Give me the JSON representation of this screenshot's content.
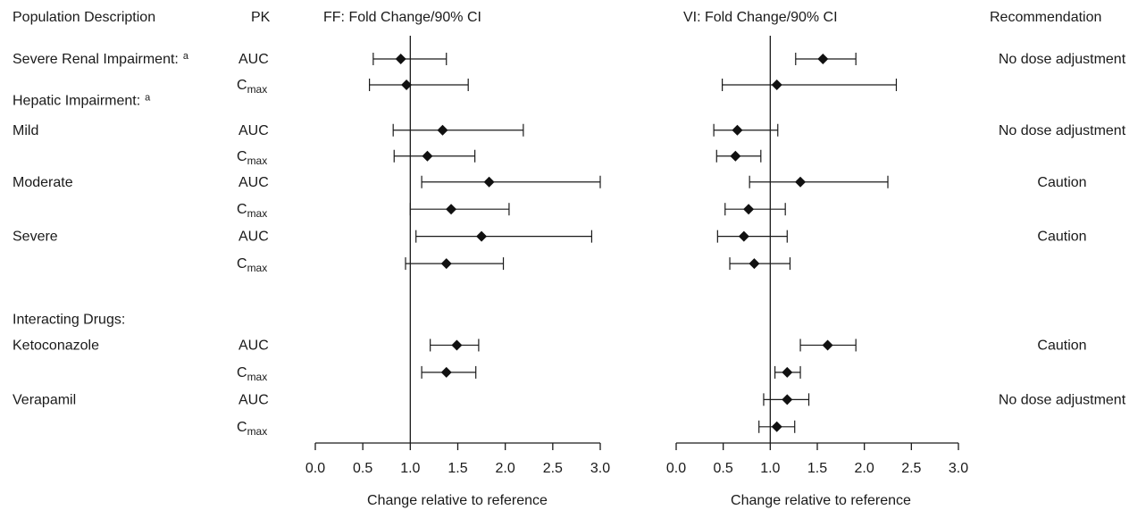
{
  "headers": {
    "population": "Population Description",
    "pk": "PK",
    "ff_title": "FF: Fold Change/90% CI",
    "vi_title": "VI: Fold Change/90% CI",
    "recommendation": "Recommendation"
  },
  "groups": [
    {
      "label": "Severe Renal Impairment:",
      "sup": "a",
      "line": 0
    },
    {
      "label": "Hepatic Impairment:",
      "sup": "a",
      "line": 1.6
    },
    {
      "label": "Interacting Drugs:",
      "sup": "",
      "line": 10.05
    }
  ],
  "pk_labels": {
    "auc": "AUC",
    "cmax_main": "C",
    "cmax_sub": "max"
  },
  "chart_data": {
    "type": "forest",
    "xlabel": "Change relative to reference",
    "xlim": [
      0,
      3
    ],
    "xticks": [
      "0.0",
      "0.5",
      "1.0",
      "1.5",
      "2.0",
      "2.5",
      "3.0"
    ],
    "reference_line": 1.0,
    "rows": [
      {
        "line": 0,
        "population": "",
        "pk": "AUC",
        "ff": {
          "est": 0.9,
          "lo": 0.61,
          "hi": 1.38
        },
        "vi": {
          "est": 1.56,
          "lo": 1.27,
          "hi": 1.91
        },
        "recommendation": "No dose adjustment"
      },
      {
        "line": 1,
        "population": "",
        "pk": "Cmax",
        "ff": {
          "est": 0.96,
          "lo": 0.57,
          "hi": 1.61
        },
        "vi": {
          "est": 1.07,
          "lo": 0.49,
          "hi": 2.34
        },
        "recommendation": ""
      },
      {
        "line": 2.75,
        "population": "Mild",
        "pk": "AUC",
        "ff": {
          "est": 1.34,
          "lo": 0.82,
          "hi": 2.19
        },
        "vi": {
          "est": 0.65,
          "lo": 0.4,
          "hi": 1.08
        },
        "recommendation": "No dose adjustment"
      },
      {
        "line": 3.75,
        "population": "",
        "pk": "Cmax",
        "ff": {
          "est": 1.18,
          "lo": 0.83,
          "hi": 1.68
        },
        "vi": {
          "est": 0.63,
          "lo": 0.43,
          "hi": 0.9
        },
        "recommendation": ""
      },
      {
        "line": 4.75,
        "population": "Moderate",
        "pk": "AUC",
        "ff": {
          "est": 1.83,
          "lo": 1.12,
          "hi": 3.0
        },
        "vi": {
          "est": 1.32,
          "lo": 0.78,
          "hi": 2.25
        },
        "recommendation": "Caution"
      },
      {
        "line": 5.8,
        "population": "",
        "pk": "Cmax",
        "ff": {
          "est": 1.43,
          "lo": 1.0,
          "hi": 2.04
        },
        "vi": {
          "est": 0.77,
          "lo": 0.52,
          "hi": 1.16
        },
        "recommendation": ""
      },
      {
        "line": 6.85,
        "population": "Severe",
        "pk": "AUC",
        "ff": {
          "est": 1.75,
          "lo": 1.06,
          "hi": 2.91
        },
        "vi": {
          "est": 0.72,
          "lo": 0.44,
          "hi": 1.18
        },
        "recommendation": "Caution"
      },
      {
        "line": 7.9,
        "population": "",
        "pk": "Cmax",
        "ff": {
          "est": 1.38,
          "lo": 0.95,
          "hi": 1.98
        },
        "vi": {
          "est": 0.83,
          "lo": 0.57,
          "hi": 1.21
        },
        "recommendation": ""
      },
      {
        "line": 11.05,
        "population": "Ketoconazole",
        "pk": "AUC",
        "ff": {
          "est": 1.49,
          "lo": 1.21,
          "hi": 1.72
        },
        "vi": {
          "est": 1.61,
          "lo": 1.32,
          "hi": 1.91
        },
        "recommendation": "Caution"
      },
      {
        "line": 12.1,
        "population": "",
        "pk": "Cmax",
        "ff": {
          "est": 1.38,
          "lo": 1.12,
          "hi": 1.69
        },
        "vi": {
          "est": 1.18,
          "lo": 1.05,
          "hi": 1.32
        },
        "recommendation": ""
      },
      {
        "line": 13.15,
        "population": "Verapamil",
        "pk": "AUC",
        "ff": null,
        "vi": {
          "est": 1.18,
          "lo": 0.93,
          "hi": 1.41
        },
        "recommendation": "No dose adjustment"
      },
      {
        "line": 14.2,
        "population": "",
        "pk": "Cmax",
        "ff": null,
        "vi": {
          "est": 1.07,
          "lo": 0.88,
          "hi": 1.26
        },
        "recommendation": ""
      }
    ]
  }
}
